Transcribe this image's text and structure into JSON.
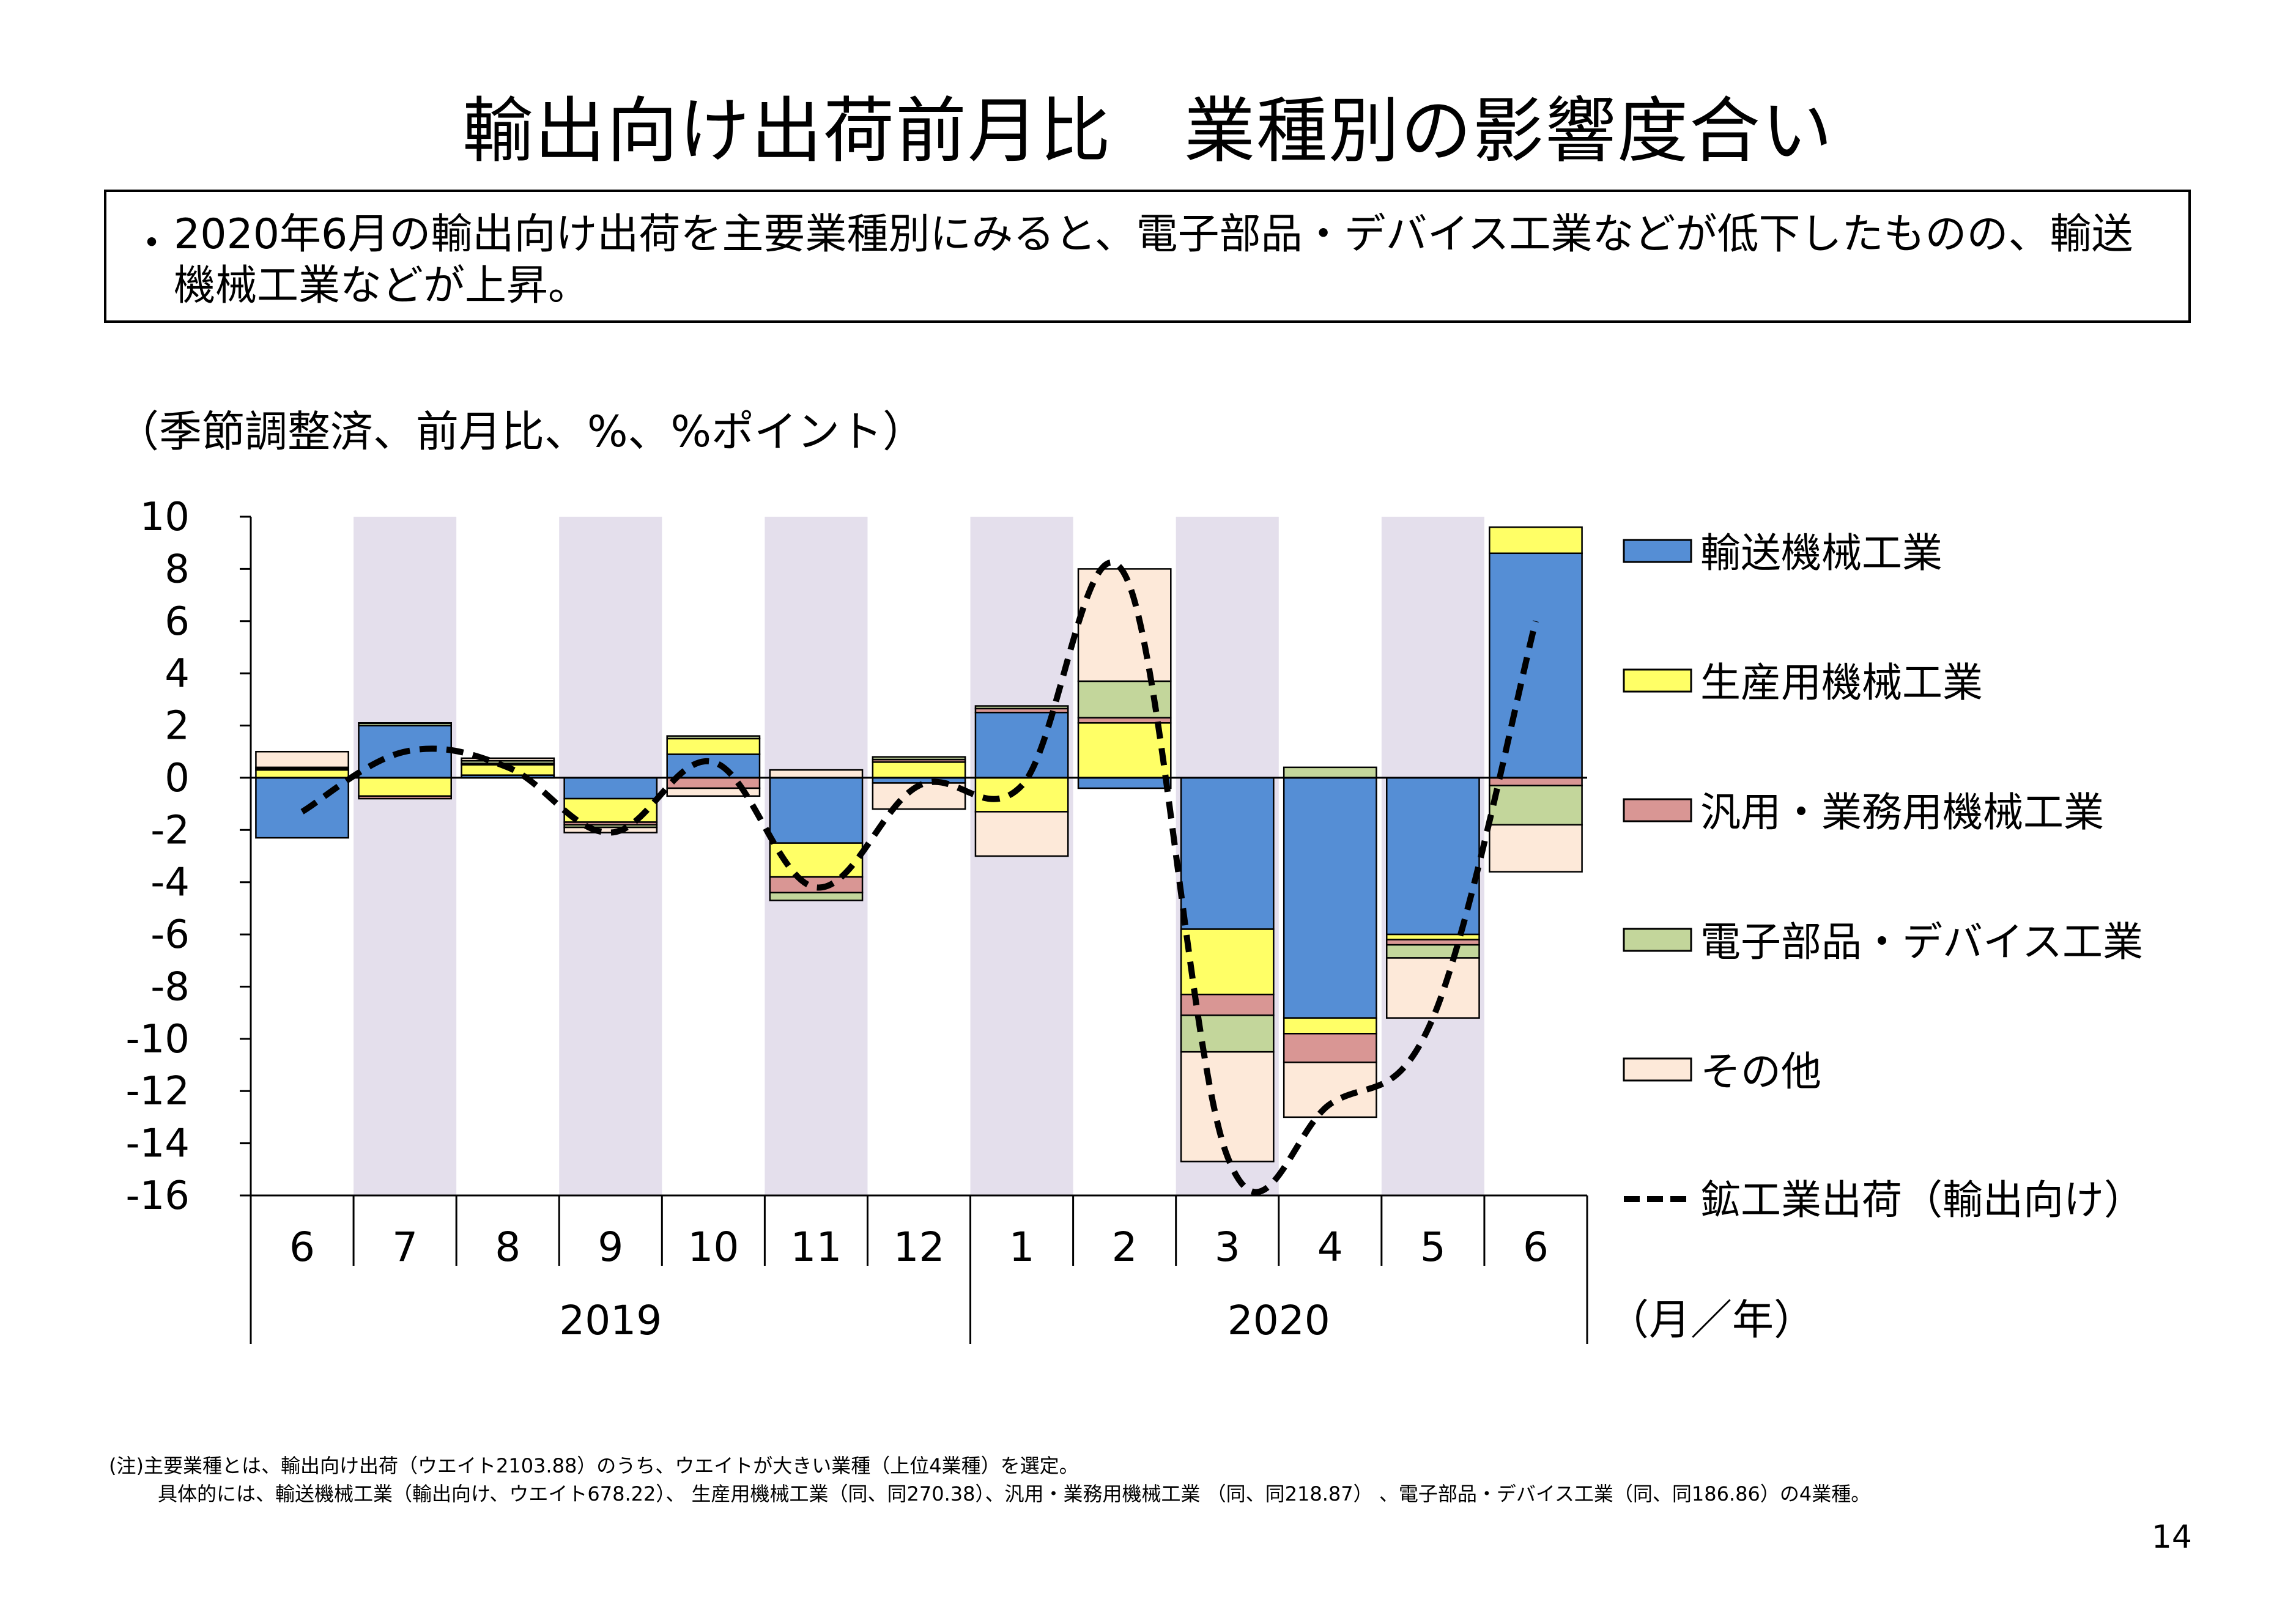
{
  "title": "輸出向け出荷前月比　業種別の影響度合い",
  "summary": {
    "bullet": "・",
    "text": "2020年6月の輸出向け出荷を主要業種別にみると、電子部品・デバイス工業などが低下したものの、輸送機械工業などが上昇。"
  },
  "unit_label": "（季節調整済、前月比、%、%ポイント）",
  "chart_data": {
    "type": "bar",
    "stacked": true,
    "categories": [
      "6",
      "7",
      "8",
      "9",
      "10",
      "11",
      "12",
      "1",
      "2",
      "3",
      "4",
      "5",
      "6"
    ],
    "year_labels": [
      {
        "label": "2019",
        "from": 0,
        "to": 6
      },
      {
        "label": "2020",
        "from": 7,
        "to": 12
      }
    ],
    "x_unit": "（月／年）",
    "ylim": [
      -16,
      10
    ],
    "yticks": [
      10,
      8,
      6,
      4,
      2,
      0,
      -2,
      -4,
      -6,
      -8,
      -10,
      -12,
      -14,
      -16
    ],
    "shaded_categories": [
      1,
      3,
      5,
      7,
      9,
      11
    ],
    "shade_color": "#e4dfec",
    "series": [
      {
        "name": "輸送機械工業",
        "color": "#558ed5",
        "values": [
          -2.3,
          2.0,
          0.1,
          -0.8,
          0.9,
          -2.5,
          -0.2,
          2.5,
          -0.4,
          -5.8,
          -9.2,
          -6.0,
          8.6
        ]
      },
      {
        "name": "生産用機械工業",
        "color": "#ffff66",
        "values": [
          0.3,
          -0.7,
          0.4,
          -0.9,
          0.6,
          -1.3,
          0.6,
          -1.3,
          2.1,
          -2.5,
          -0.6,
          -0.2,
          1.0
        ]
      },
      {
        "name": "汎用・業務用機械工業",
        "color": "#d99694",
        "values": [
          0.05,
          -0.1,
          0.05,
          -0.1,
          -0.4,
          -0.6,
          0.1,
          0.15,
          0.2,
          -0.8,
          -1.1,
          -0.2,
          -0.3
        ]
      },
      {
        "name": "電子部品・デバイス工業",
        "color": "#c3d69b",
        "values": [
          0.05,
          0.1,
          0.1,
          -0.1,
          0.1,
          -0.3,
          0.1,
          0.1,
          1.4,
          -1.4,
          0.4,
          -0.5,
          -1.5
        ]
      },
      {
        "name": "その他",
        "color": "#fde9d9",
        "values": [
          0.6,
          0.0,
          0.1,
          -0.2,
          -0.3,
          0.3,
          -1.0,
          -1.7,
          4.3,
          -4.2,
          -2.1,
          -2.3,
          -1.8
        ]
      }
    ],
    "line": {
      "name": "鉱工業出荷（輸出向け）",
      "style": "dashed",
      "color": "#000000",
      "values": [
        -1.3,
        1.0,
        0.4,
        -2.1,
        0.6,
        -4.2,
        -0.3,
        -0.3,
        7.8,
        -14.5,
        -12.5,
        -9.2,
        6.0
      ]
    }
  },
  "notes": [
    "(注)主要業種とは、輸出向け出荷（ウエイト2103.88）のうち、ウエイトが大きい業種（上位4業種）を選定。",
    "具体的には、輸送機械工業（輸出向け、ウエイト678.22）、 生産用機械工業（同、同270.38）、汎用・業務用機械工業 （同、同218.87） 、電子部品・デバイス工業（同、同186.86）の4業種。"
  ],
  "page_number": "14"
}
